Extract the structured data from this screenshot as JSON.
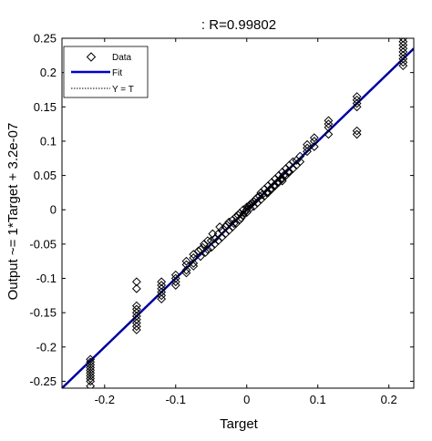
{
  "chart_data": {
    "type": "scatter",
    "title": ": R=0.99802",
    "xlabel": "Target",
    "ylabel": "Output ~= 1*Target + 3.2e-07",
    "xlim": [
      -0.26,
      0.235
    ],
    "ylim": [
      -0.26,
      0.25
    ],
    "xticks": [
      -0.2,
      -0.1,
      0,
      0.1,
      0.2
    ],
    "xtick_labels": [
      "-0.2",
      "-0.1",
      "0",
      "0.1",
      "0.2"
    ],
    "yticks": [
      -0.25,
      -0.2,
      -0.15,
      -0.1,
      -0.05,
      0,
      0.05,
      0.1,
      0.15,
      0.2,
      0.25
    ],
    "ytick_labels": [
      "-0.25",
      "-0.2",
      "-0.15",
      "-0.1",
      "-0.05",
      "0",
      "0.05",
      "0.1",
      "0.15",
      "0.2",
      "0.25"
    ],
    "grid": false,
    "legend": {
      "position": "top-left",
      "entries": [
        {
          "label": "Data",
          "marker": "diamond-open",
          "color": "#000000"
        },
        {
          "label": "Fit",
          "style": "solid",
          "color": "#0000CC"
        },
        {
          "label": "Y = T",
          "style": "dotted",
          "color": "#000000"
        }
      ]
    },
    "fit": {
      "slope": 1,
      "intercept": 3.2e-07,
      "color": "#0000CC"
    },
    "identity_line": {
      "slope": 1,
      "intercept": 0,
      "color": "#000000",
      "style": "dotted"
    },
    "series": [
      {
        "name": "Data",
        "marker": "diamond-open",
        "color": "#000000",
        "points": [
          [
            -0.22,
            -0.218
          ],
          [
            -0.22,
            -0.222
          ],
          [
            -0.22,
            -0.226
          ],
          [
            -0.22,
            -0.23
          ],
          [
            -0.22,
            -0.234
          ],
          [
            -0.22,
            -0.238
          ],
          [
            -0.22,
            -0.242
          ],
          [
            -0.22,
            -0.246
          ],
          [
            -0.22,
            -0.25
          ],
          [
            -0.22,
            -0.257
          ],
          [
            -0.155,
            -0.105
          ],
          [
            -0.155,
            -0.115
          ],
          [
            -0.155,
            -0.14
          ],
          [
            -0.155,
            -0.145
          ],
          [
            -0.155,
            -0.15
          ],
          [
            -0.155,
            -0.155
          ],
          [
            -0.155,
            -0.16
          ],
          [
            -0.155,
            -0.165
          ],
          [
            -0.155,
            -0.17
          ],
          [
            -0.155,
            -0.175
          ],
          [
            -0.12,
            -0.105
          ],
          [
            -0.12,
            -0.11
          ],
          [
            -0.12,
            -0.115
          ],
          [
            -0.12,
            -0.12
          ],
          [
            -0.12,
            -0.125
          ],
          [
            -0.12,
            -0.13
          ],
          [
            -0.1,
            -0.095
          ],
          [
            -0.1,
            -0.1
          ],
          [
            -0.1,
            -0.105
          ],
          [
            -0.1,
            -0.11
          ],
          [
            -0.085,
            -0.075
          ],
          [
            -0.085,
            -0.08
          ],
          [
            -0.085,
            -0.088
          ],
          [
            -0.085,
            -0.092
          ],
          [
            -0.075,
            -0.065
          ],
          [
            -0.075,
            -0.07
          ],
          [
            -0.075,
            -0.078
          ],
          [
            -0.075,
            -0.082
          ],
          [
            -0.068,
            -0.06
          ],
          [
            -0.065,
            -0.058
          ],
          [
            -0.065,
            -0.068
          ],
          [
            -0.062,
            -0.055
          ],
          [
            -0.06,
            -0.05
          ],
          [
            -0.058,
            -0.062
          ],
          [
            -0.055,
            -0.045
          ],
          [
            -0.055,
            -0.058
          ],
          [
            -0.05,
            -0.045
          ],
          [
            -0.05,
            -0.055
          ],
          [
            -0.048,
            -0.035
          ],
          [
            -0.045,
            -0.042
          ],
          [
            -0.045,
            -0.05
          ],
          [
            -0.04,
            -0.035
          ],
          [
            -0.04,
            -0.045
          ],
          [
            -0.038,
            -0.025
          ],
          [
            -0.035,
            -0.03
          ],
          [
            -0.035,
            -0.04
          ],
          [
            -0.03,
            -0.025
          ],
          [
            -0.03,
            -0.035
          ],
          [
            -0.028,
            -0.022
          ],
          [
            -0.025,
            -0.018
          ],
          [
            -0.025,
            -0.03
          ],
          [
            -0.02,
            -0.015
          ],
          [
            -0.02,
            -0.025
          ],
          [
            -0.018,
            -0.02
          ],
          [
            -0.015,
            -0.01
          ],
          [
            -0.015,
            -0.02
          ],
          [
            -0.012,
            -0.008
          ],
          [
            -0.01,
            -0.005
          ],
          [
            -0.01,
            -0.015
          ],
          [
            -0.008,
            -0.012
          ],
          [
            -0.005,
            0.0
          ],
          [
            -0.005,
            -0.008
          ],
          [
            -0.003,
            -0.004
          ],
          [
            0.0,
            0.0
          ],
          [
            0.0,
            0.004
          ],
          [
            0.0,
            -0.004
          ],
          [
            0.003,
            0.005
          ],
          [
            0.005,
            0.002
          ],
          [
            0.005,
            0.008
          ],
          [
            0.008,
            0.01
          ],
          [
            0.01,
            0.005
          ],
          [
            0.01,
            0.012
          ],
          [
            0.012,
            0.015
          ],
          [
            0.015,
            0.01
          ],
          [
            0.015,
            0.018
          ],
          [
            0.018,
            0.02
          ],
          [
            0.02,
            0.015
          ],
          [
            0.02,
            0.025
          ],
          [
            0.022,
            0.022
          ],
          [
            0.025,
            0.02
          ],
          [
            0.025,
            0.03
          ],
          [
            0.028,
            0.025
          ],
          [
            0.03,
            0.025
          ],
          [
            0.03,
            0.035
          ],
          [
            0.033,
            0.03
          ],
          [
            0.035,
            0.03
          ],
          [
            0.035,
            0.04
          ],
          [
            0.038,
            0.035
          ],
          [
            0.04,
            0.035
          ],
          [
            0.04,
            0.045
          ],
          [
            0.043,
            0.04
          ],
          [
            0.045,
            0.04
          ],
          [
            0.045,
            0.05
          ],
          [
            0.048,
            0.045
          ],
          [
            0.05,
            0.045
          ],
          [
            0.05,
            0.055
          ],
          [
            0.052,
            0.05
          ],
          [
            0.055,
            0.05
          ],
          [
            0.055,
            0.06
          ],
          [
            0.058,
            0.055
          ],
          [
            0.06,
            0.055
          ],
          [
            0.06,
            0.065
          ],
          [
            0.065,
            0.06
          ],
          [
            0.065,
            0.07
          ],
          [
            0.07,
            0.065
          ],
          [
            0.07,
            0.072
          ],
          [
            0.075,
            0.07
          ],
          [
            0.075,
            0.078
          ],
          [
            0.03,
            0.025
          ],
          [
            0.05,
            0.042
          ],
          [
            0.085,
            0.085
          ],
          [
            0.085,
            0.09
          ],
          [
            0.085,
            0.095
          ],
          [
            0.095,
            0.092
          ],
          [
            0.095,
            0.1
          ],
          [
            0.095,
            0.105
          ],
          [
            0.115,
            0.11
          ],
          [
            0.115,
            0.12
          ],
          [
            0.115,
            0.125
          ],
          [
            0.115,
            0.13
          ],
          [
            0.155,
            0.11
          ],
          [
            0.155,
            0.115
          ],
          [
            0.155,
            0.15
          ],
          [
            0.155,
            0.155
          ],
          [
            0.155,
            0.16
          ],
          [
            0.155,
            0.165
          ],
          [
            0.22,
            0.21
          ],
          [
            0.22,
            0.215
          ],
          [
            0.22,
            0.22
          ],
          [
            0.22,
            0.225
          ],
          [
            0.22,
            0.23
          ],
          [
            0.22,
            0.235
          ],
          [
            0.22,
            0.24
          ],
          [
            0.22,
            0.245
          ],
          [
            0.22,
            0.25
          ]
        ]
      }
    ]
  }
}
